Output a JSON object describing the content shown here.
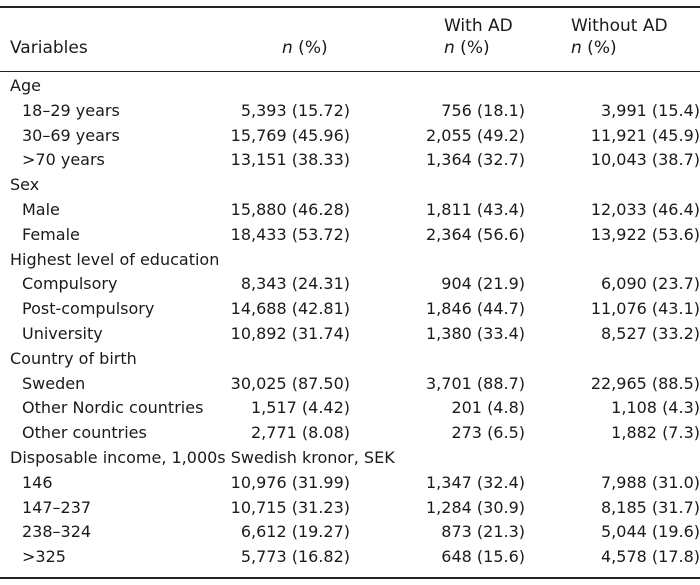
{
  "header": {
    "variables": "Variables",
    "col1": {
      "line1": "",
      "n": "n",
      "pct": " (%)"
    },
    "col2": {
      "line1": "With AD",
      "n": "n",
      "pct": " (%)"
    },
    "col3": {
      "line1": "Without AD",
      "n": "n",
      "pct": " (%)"
    }
  },
  "rows": [
    {
      "type": "group",
      "label": "Age"
    },
    {
      "type": "item",
      "label": "18–29 years",
      "total": "5,393 (15.72)",
      "with_ad": "756 (18.1)",
      "without_ad": "3,991 (15.4)"
    },
    {
      "type": "item",
      "label": "30–69 years",
      "total": "15,769 (45.96)",
      "with_ad": "2,055 (49.2)",
      "without_ad": "11,921 (45.9)"
    },
    {
      "type": "item",
      "label": ">70 years",
      "total": "13,151 (38.33)",
      "with_ad": "1,364 (32.7)",
      "without_ad": "10,043 (38.7)"
    },
    {
      "type": "group",
      "label": "Sex"
    },
    {
      "type": "item",
      "label": "Male",
      "total": "15,880 (46.28)",
      "with_ad": "1,811 (43.4)",
      "without_ad": "12,033 (46.4)"
    },
    {
      "type": "item",
      "label": "Female",
      "total": "18,433 (53.72)",
      "with_ad": "2,364 (56.6)",
      "without_ad": "13,922 (53.6)"
    },
    {
      "type": "group",
      "label": "Highest level of education"
    },
    {
      "type": "item",
      "label": "Compulsory",
      "total": "8,343 (24.31)",
      "with_ad": "904 (21.9)",
      "without_ad": "6,090 (23.7)"
    },
    {
      "type": "item",
      "label": "Post-compulsory",
      "total": "14,688 (42.81)",
      "with_ad": "1,846 (44.7)",
      "without_ad": "11,076 (43.1)"
    },
    {
      "type": "item",
      "label": "University",
      "total": "10,892 (31.74)",
      "with_ad": "1,380 (33.4)",
      "without_ad": "8,527 (33.2)"
    },
    {
      "type": "group",
      "label": "Country of birth"
    },
    {
      "type": "item",
      "label": "Sweden",
      "total": "30,025 (87.50)",
      "with_ad": "3,701 (88.7)",
      "without_ad": "22,965 (88.5)"
    },
    {
      "type": "item",
      "label": "Other Nordic countries",
      "total": "1,517 (4.42)",
      "with_ad": "201 (4.8)",
      "without_ad": "1,108 (4.3)"
    },
    {
      "type": "item",
      "label": "Other countries",
      "total": "2,771 (8.08)",
      "with_ad": "273 (6.5)",
      "without_ad": "1,882 (7.3)"
    },
    {
      "type": "group",
      "label": "Disposable income, 1,000s Swedish kronor, SEK"
    },
    {
      "type": "item",
      "label": "146",
      "total": "10,976 (31.99)",
      "with_ad": "1,347 (32.4)",
      "without_ad": "7,988 (31.0)"
    },
    {
      "type": "item",
      "label": "147–237",
      "total": "10,715 (31.23)",
      "with_ad": "1,284 (30.9)",
      "without_ad": "8,185 (31.7)"
    },
    {
      "type": "item",
      "label": "238–324",
      "total": "6,612 (19.27)",
      "with_ad": "873 (21.3)",
      "without_ad": "5,044 (19.6)"
    },
    {
      "type": "item",
      "label": ">325",
      "total": "5,773 (16.82)",
      "with_ad": "648 (15.6)",
      "without_ad": "4,578 (17.8)"
    }
  ]
}
